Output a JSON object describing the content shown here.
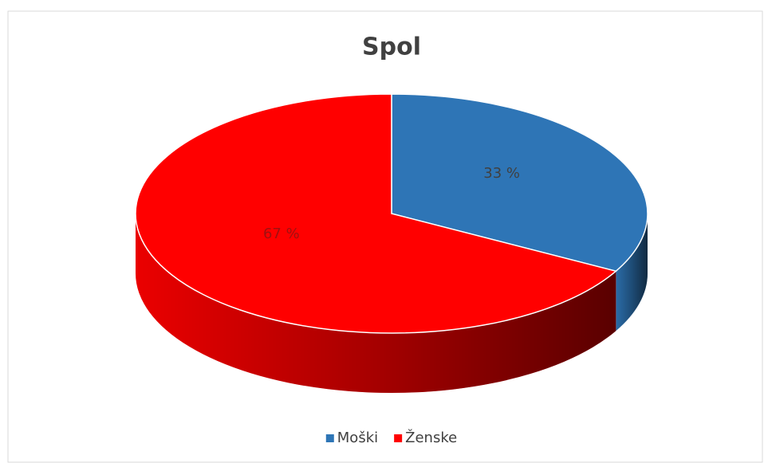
{
  "chart_data": {
    "type": "pie3d",
    "title": "Spol",
    "categories": [
      "Moški",
      "Ženske"
    ],
    "values": [
      33,
      67
    ],
    "value_labels": [
      "33 %",
      "67 %"
    ],
    "colors": [
      "#2e75b6",
      "#ff0000"
    ],
    "legend": "bottom"
  }
}
